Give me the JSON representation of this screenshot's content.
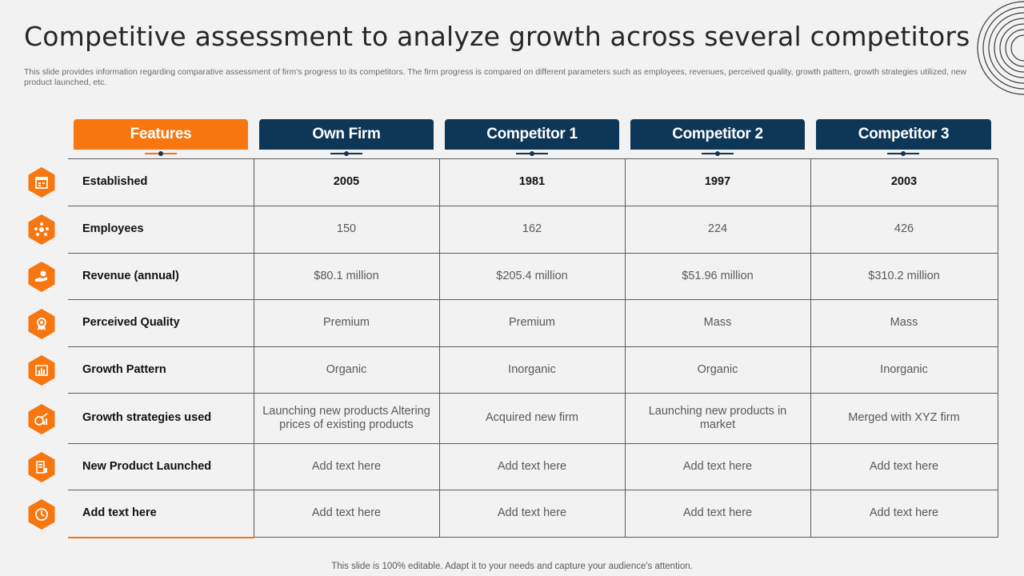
{
  "title": "Competitive assessment to analyze growth across several competitors",
  "subtitle": "This slide provides information regarding comparative assessment of firm’s progress to its competitors. The firm progress is compared on different parameters such as employees, revenues, perceived quality, growth pattern, growth strategies utilized, new product launched, etc.",
  "colors": {
    "accent": "#f7760f",
    "navy": "#0e3657"
  },
  "headers": [
    "Features",
    "Own Firm",
    "Competitor 1",
    "Competitor 2",
    "Competitor 3"
  ],
  "rows": [
    {
      "feature": "Established",
      "icon": "calendar-icon",
      "values": [
        "2005",
        "1981",
        "1997",
        "2003"
      ]
    },
    {
      "feature": "Employees",
      "icon": "team-icon",
      "values": [
        "150",
        "162",
        "224",
        "426"
      ]
    },
    {
      "feature": "Revenue (annual)",
      "icon": "money-hand-icon",
      "values": [
        "$80.1 million",
        "$205.4 million",
        "$51.96 million",
        "$310.2 million"
      ]
    },
    {
      "feature": "Perceived Quality",
      "icon": "award-icon",
      "values": [
        "Premium",
        "Premium",
        "Mass",
        "Mass"
      ]
    },
    {
      "feature": "Growth Pattern",
      "icon": "bar-chart-icon",
      "values": [
        "Organic",
        "Inorganic",
        "Organic",
        "Inorganic"
      ]
    },
    {
      "feature": "Growth strategies used",
      "icon": "growth-chart-icon",
      "values": [
        "Launching new products Altering prices of existing products",
        "Acquired new firm",
        "Launching new products in market",
        "Merged with XYZ firm"
      ]
    },
    {
      "feature": "New Product Launched",
      "icon": "product-icon",
      "values": [
        "Add text here",
        "Add text here",
        "Add text here",
        "Add text here"
      ]
    },
    {
      "feature": "Add  text here",
      "icon": "clock-icon",
      "values": [
        "Add text here",
        "Add text here",
        "Add text here",
        "Add text here"
      ]
    }
  ],
  "footer": "This slide is 100% editable. Adapt it to your needs and capture your audience's attention."
}
